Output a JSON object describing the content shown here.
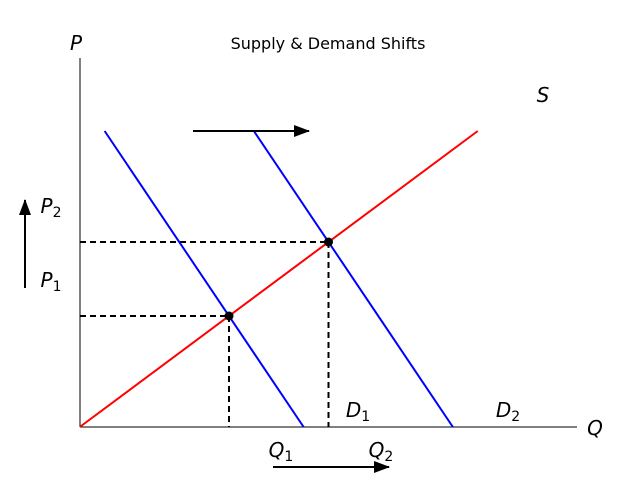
{
  "chart_data": {
    "type": "line",
    "title": "Supply & Demand Shifts",
    "xlabel": "Q",
    "ylabel": "P",
    "xlim": [
      0,
      10
    ],
    "ylim": [
      0,
      10
    ],
    "grid": false,
    "series": [
      {
        "name": "S",
        "color": "#ff0000",
        "x": [
          1,
          9
        ],
        "y": [
          1,
          9
        ]
      },
      {
        "name": "D1",
        "color": "#0000ff",
        "x": [
          1.5,
          5.5
        ],
        "y": [
          9,
          1
        ]
      },
      {
        "name": "D2",
        "color": "#0000ff",
        "x": [
          4.5,
          8.5
        ],
        "y": [
          9,
          1
        ]
      }
    ],
    "equilibria": [
      {
        "x": 4,
        "y": 4,
        "q_label": "Q1",
        "p_label": "P1"
      },
      {
        "x": 6,
        "y": 6,
        "q_label": "Q2",
        "p_label": "P2"
      }
    ],
    "labels": {
      "supply": {
        "base": "S"
      },
      "d1": {
        "base": "D",
        "sub": "1"
      },
      "d2": {
        "base": "D",
        "sub": "2"
      },
      "q1": {
        "base": "Q",
        "sub": "1"
      },
      "q2": {
        "base": "Q",
        "sub": "2"
      },
      "p1": {
        "base": "P",
        "sub": "1"
      },
      "p2": {
        "base": "P",
        "sub": "2"
      }
    },
    "arrows": [
      "demand-shift-right",
      "price-rise-up",
      "quantity-rise-right"
    ],
    "colors": {
      "supply": "#ff0000",
      "demand": "#0000ff",
      "guides": "#000000"
    }
  }
}
